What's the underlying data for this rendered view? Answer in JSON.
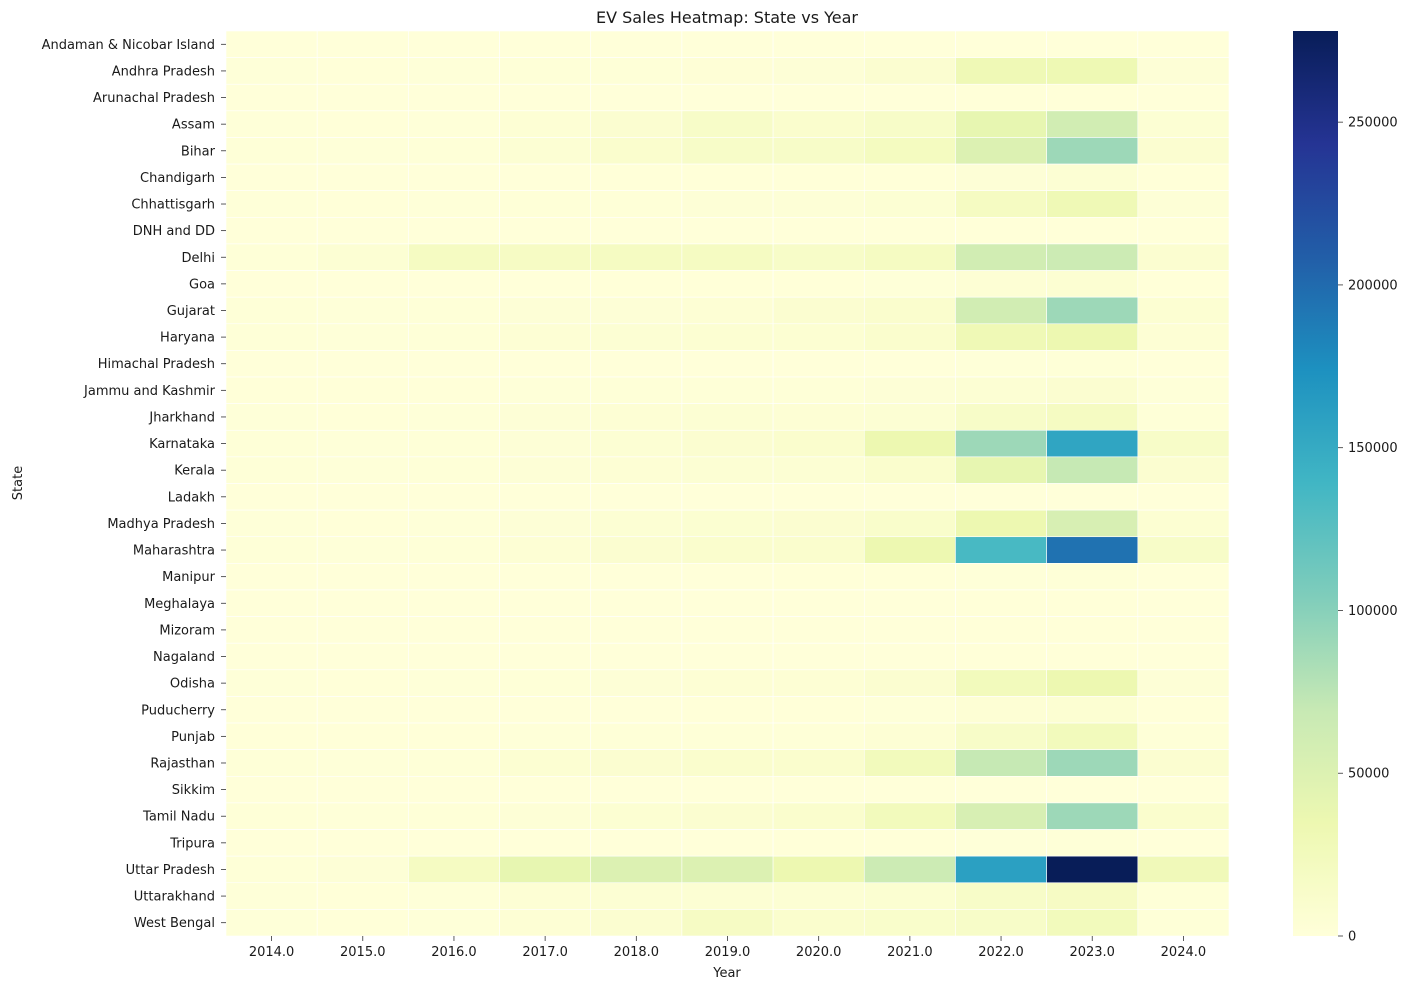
{
  "chart_data": {
    "type": "heatmap",
    "title": "EV Sales Heatmap: State vs Year",
    "xlabel": "Year",
    "ylabel": "State",
    "x": [
      "2014.0",
      "2015.0",
      "2016.0",
      "2017.0",
      "2018.0",
      "2019.0",
      "2020.0",
      "2021.0",
      "2022.0",
      "2023.0",
      "2024.0"
    ],
    "y": [
      "Andaman & Nicobar Island",
      "Andhra Pradesh",
      "Arunachal Pradesh",
      "Assam",
      "Bihar",
      "Chandigarh",
      "Chhattisgarh",
      "DNH and DD",
      "Delhi",
      "Goa",
      "Gujarat",
      "Haryana",
      "Himachal Pradesh",
      "Jammu and Kashmir",
      "Jharkhand",
      "Karnataka",
      "Kerala",
      "Ladakh",
      "Madhya Pradesh",
      "Maharashtra",
      "Manipur",
      "Meghalaya",
      "Mizoram",
      "Nagaland",
      "Odisha",
      "Puducherry",
      "Punjab",
      "Rajasthan",
      "Sikkim",
      "Tamil Nadu",
      "Tripura",
      "Uttar Pradesh",
      "Uttarakhand",
      "West Bengal"
    ],
    "values": [
      [
        0,
        0,
        0,
        0,
        0,
        0,
        0,
        0,
        100,
        200,
        50
      ],
      [
        1000,
        800,
        1000,
        1500,
        2000,
        2500,
        3000,
        8000,
        30000,
        32000,
        3000
      ],
      [
        0,
        0,
        0,
        0,
        0,
        0,
        0,
        0,
        500,
        800,
        100
      ],
      [
        1000,
        800,
        1000,
        4000,
        8000,
        15000,
        10000,
        15000,
        40000,
        60000,
        5000
      ],
      [
        1500,
        1200,
        1500,
        5000,
        10000,
        15000,
        15000,
        22000,
        50000,
        90000,
        8000
      ],
      [
        0,
        0,
        0,
        0,
        500,
        500,
        500,
        800,
        3000,
        5000,
        500
      ],
      [
        1000,
        800,
        1000,
        1500,
        2000,
        3000,
        3000,
        5000,
        20000,
        30000,
        3000
      ],
      [
        0,
        0,
        0,
        0,
        0,
        0,
        0,
        0,
        500,
        800,
        100
      ],
      [
        2000,
        5000,
        20000,
        18000,
        20000,
        20000,
        15000,
        20000,
        60000,
        65000,
        8000
      ],
      [
        0,
        0,
        0,
        0,
        500,
        500,
        500,
        1000,
        4000,
        6000,
        500
      ],
      [
        1500,
        1200,
        1500,
        3000,
        3000,
        4000,
        8000,
        10000,
        60000,
        90000,
        6000
      ],
      [
        1500,
        1200,
        1500,
        4000,
        5000,
        6000,
        6000,
        10000,
        30000,
        35000,
        4000
      ],
      [
        0,
        0,
        0,
        0,
        0,
        0,
        0,
        0,
        1000,
        1500,
        200
      ],
      [
        500,
        500,
        500,
        1000,
        2000,
        2000,
        2000,
        3000,
        5000,
        8000,
        1000
      ],
      [
        1000,
        800,
        1000,
        3000,
        4000,
        5000,
        4000,
        5000,
        15000,
        20000,
        2000
      ],
      [
        1500,
        1200,
        1500,
        3000,
        5000,
        8000,
        10000,
        35000,
        90000,
        155000,
        15000
      ],
      [
        1500,
        1200,
        1500,
        3000,
        4000,
        5000,
        5000,
        10000,
        40000,
        70000,
        8000
      ],
      [
        0,
        0,
        0,
        0,
        0,
        0,
        0,
        0,
        200,
        300,
        50
      ],
      [
        1000,
        800,
        1000,
        3000,
        5000,
        7000,
        8000,
        12000,
        35000,
        55000,
        6000
      ],
      [
        1500,
        1200,
        1500,
        4000,
        8000,
        10000,
        10000,
        35000,
        135000,
        195000,
        15000
      ],
      [
        0,
        0,
        0,
        0,
        0,
        0,
        500,
        500,
        1000,
        1500,
        200
      ],
      [
        0,
        0,
        0,
        0,
        0,
        0,
        0,
        0,
        500,
        800,
        100
      ],
      [
        0,
        0,
        0,
        0,
        0,
        0,
        0,
        0,
        500,
        800,
        100
      ],
      [
        0,
        0,
        0,
        0,
        0,
        0,
        0,
        0,
        500,
        800,
        100
      ],
      [
        1000,
        800,
        1000,
        2000,
        3000,
        4000,
        4000,
        8000,
        25000,
        35000,
        3000
      ],
      [
        0,
        0,
        0,
        0,
        0,
        500,
        500,
        1000,
        4000,
        6000,
        500
      ],
      [
        500,
        500,
        500,
        1000,
        1500,
        2000,
        2000,
        4000,
        15000,
        25000,
        2000
      ],
      [
        1500,
        1200,
        1500,
        6000,
        8000,
        10000,
        10000,
        25000,
        70000,
        90000,
        8000
      ],
      [
        0,
        0,
        0,
        0,
        0,
        0,
        0,
        0,
        200,
        300,
        50
      ],
      [
        1500,
        1200,
        1500,
        3000,
        6000,
        8000,
        10000,
        25000,
        55000,
        90000,
        10000
      ],
      [
        0,
        0,
        0,
        0,
        0,
        0,
        500,
        500,
        1000,
        1500,
        200
      ],
      [
        2000,
        3000,
        20000,
        40000,
        50000,
        50000,
        35000,
        65000,
        160000,
        278000,
        28000
      ],
      [
        1000,
        800,
        1000,
        4000,
        5000,
        5000,
        5000,
        7000,
        15000,
        18000,
        2000
      ],
      [
        1000,
        800,
        1000,
        4000,
        8000,
        18000,
        10000,
        12000,
        15000,
        25000,
        2000
      ]
    ],
    "zlim": [
      0,
      278000
    ],
    "colorbar_ticks": [
      0,
      50000,
      100000,
      150000,
      200000,
      250000
    ],
    "colormap": "YlGnBu",
    "grid": false,
    "legend": "colorbar-right"
  }
}
